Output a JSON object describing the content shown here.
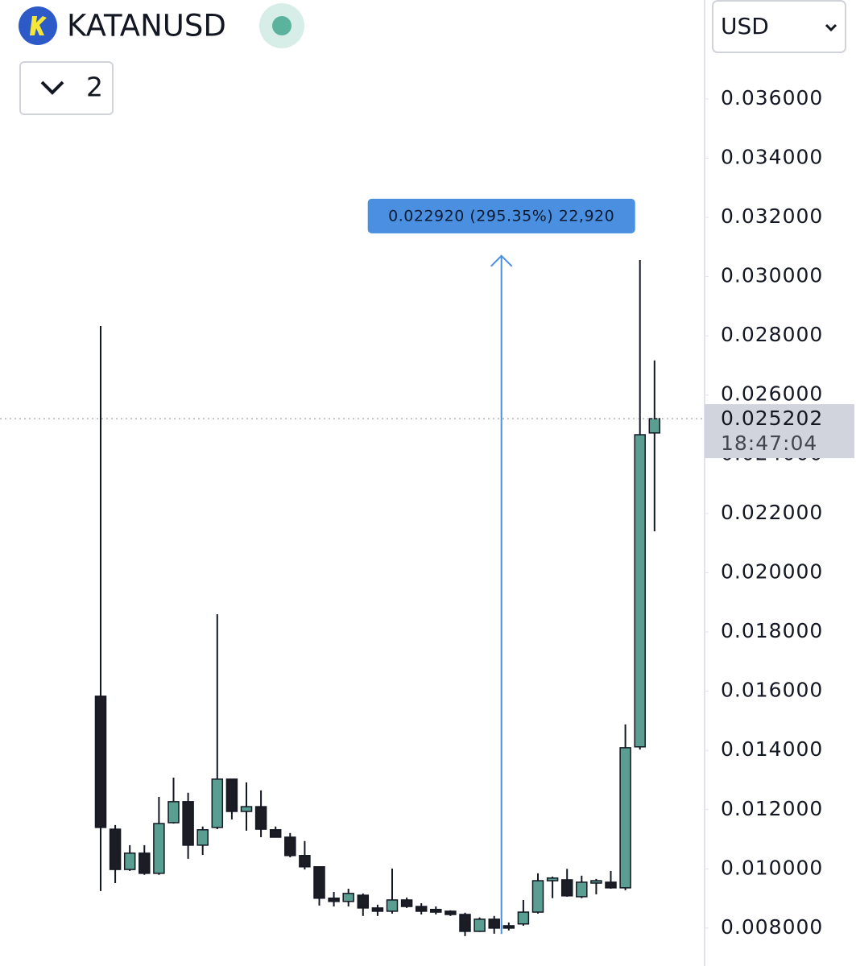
{
  "header": {
    "symbol": "KATANUSD",
    "interval": "2",
    "currency": "USD"
  },
  "chart_data": {
    "type": "candlestick",
    "up_color": "#5a9e92",
    "down_color": "#1c1c24",
    "open": [
      0.01583,
      0.01134,
      0.00998,
      0.01053,
      0.00985,
      0.01156,
      0.01227,
      0.0108,
      0.0114,
      0.01303,
      0.01194,
      0.0121,
      0.01132,
      0.01107,
      0.01045,
      0.01007,
      0.00901,
      0.0089,
      0.00911,
      0.00868,
      0.00857,
      0.00895,
      0.00873,
      0.00863,
      0.00857,
      0.00846,
      0.00789,
      0.0083,
      0.00808,
      0.00814,
      0.00854,
      0.0096,
      0.00963,
      0.00906,
      0.00952,
      0.00955,
      0.00936,
      0.01412,
      0.02472
    ],
    "high": [
      0.02833,
      0.01148,
      0.0108,
      0.0108,
      0.01243,
      0.01308,
      0.01257,
      0.01143,
      0.0186,
      0.01303,
      0.01292,
      0.01265,
      0.01143,
      0.01121,
      0.01094,
      0.01007,
      0.00922,
      0.00933,
      0.00917,
      0.00879,
      0.01001,
      0.00903,
      0.00884,
      0.00873,
      0.0086,
      0.00852,
      0.00836,
      0.00841,
      0.00819,
      0.00895,
      0.00985,
      0.00974,
      0.01,
      0.00977,
      0.00966,
      0.00993,
      0.01488,
      0.03056,
      0.02717
    ],
    "low": [
      0.00925,
      0.00952,
      0.00993,
      0.0098,
      0.0098,
      0.01153,
      0.01034,
      0.01047,
      0.01134,
      0.01167,
      0.01129,
      0.01107,
      0.01107,
      0.01039,
      0.00998,
      0.00876,
      0.00873,
      0.00873,
      0.00841,
      0.00841,
      0.00849,
      0.00868,
      0.00846,
      0.00846,
      0.00841,
      0.00773,
      0.00787,
      0.00781,
      0.00792,
      0.00808,
      0.00849,
      0.00901,
      0.00906,
      0.00901,
      0.00914,
      0.00933,
      0.00928,
      0.01403,
      0.0214
    ],
    "close": [
      0.0114,
      0.00998,
      0.01053,
      0.00985,
      0.01153,
      0.01227,
      0.0108,
      0.01132,
      0.01303,
      0.01194,
      0.0121,
      0.01134,
      0.01107,
      0.01045,
      0.01007,
      0.00901,
      0.0089,
      0.00917,
      0.00868,
      0.00857,
      0.00895,
      0.00873,
      0.00857,
      0.00854,
      0.00846,
      0.00789,
      0.0083,
      0.008,
      0.008,
      0.00854,
      0.0096,
      0.00969,
      0.00909,
      0.00955,
      0.0096,
      0.00936,
      0.01409,
      0.02466,
      0.025202
    ],
    "ylim": [
      0.00672,
      0.03934
    ],
    "yticks": [
      {
        "value": 0.008,
        "label": "0.008000"
      },
      {
        "value": 0.01,
        "label": "0.010000"
      },
      {
        "value": 0.012,
        "label": "0.012000"
      },
      {
        "value": 0.014,
        "label": "0.014000"
      },
      {
        "value": 0.016,
        "label": "0.016000"
      },
      {
        "value": 0.018,
        "label": "0.018000"
      },
      {
        "value": 0.02,
        "label": "0.020000"
      },
      {
        "value": 0.022,
        "label": "0.022000"
      },
      {
        "value": 0.024,
        "label": "0.024000"
      },
      {
        "value": 0.026,
        "label": "0.026000"
      },
      {
        "value": 0.028,
        "label": "0.028000"
      },
      {
        "value": 0.03,
        "label": "0.030000"
      },
      {
        "value": 0.032,
        "label": "0.032000"
      },
      {
        "value": 0.034,
        "label": "0.034000"
      },
      {
        "value": 0.036,
        "label": "0.036000"
      }
    ],
    "last_price": {
      "value": 0.025202,
      "label": "0.025202",
      "countdown": "18:47:04"
    },
    "measure": {
      "from": 0.0078,
      "to": 0.0307,
      "label": "0.022920 (295.35%) 22,920"
    }
  }
}
